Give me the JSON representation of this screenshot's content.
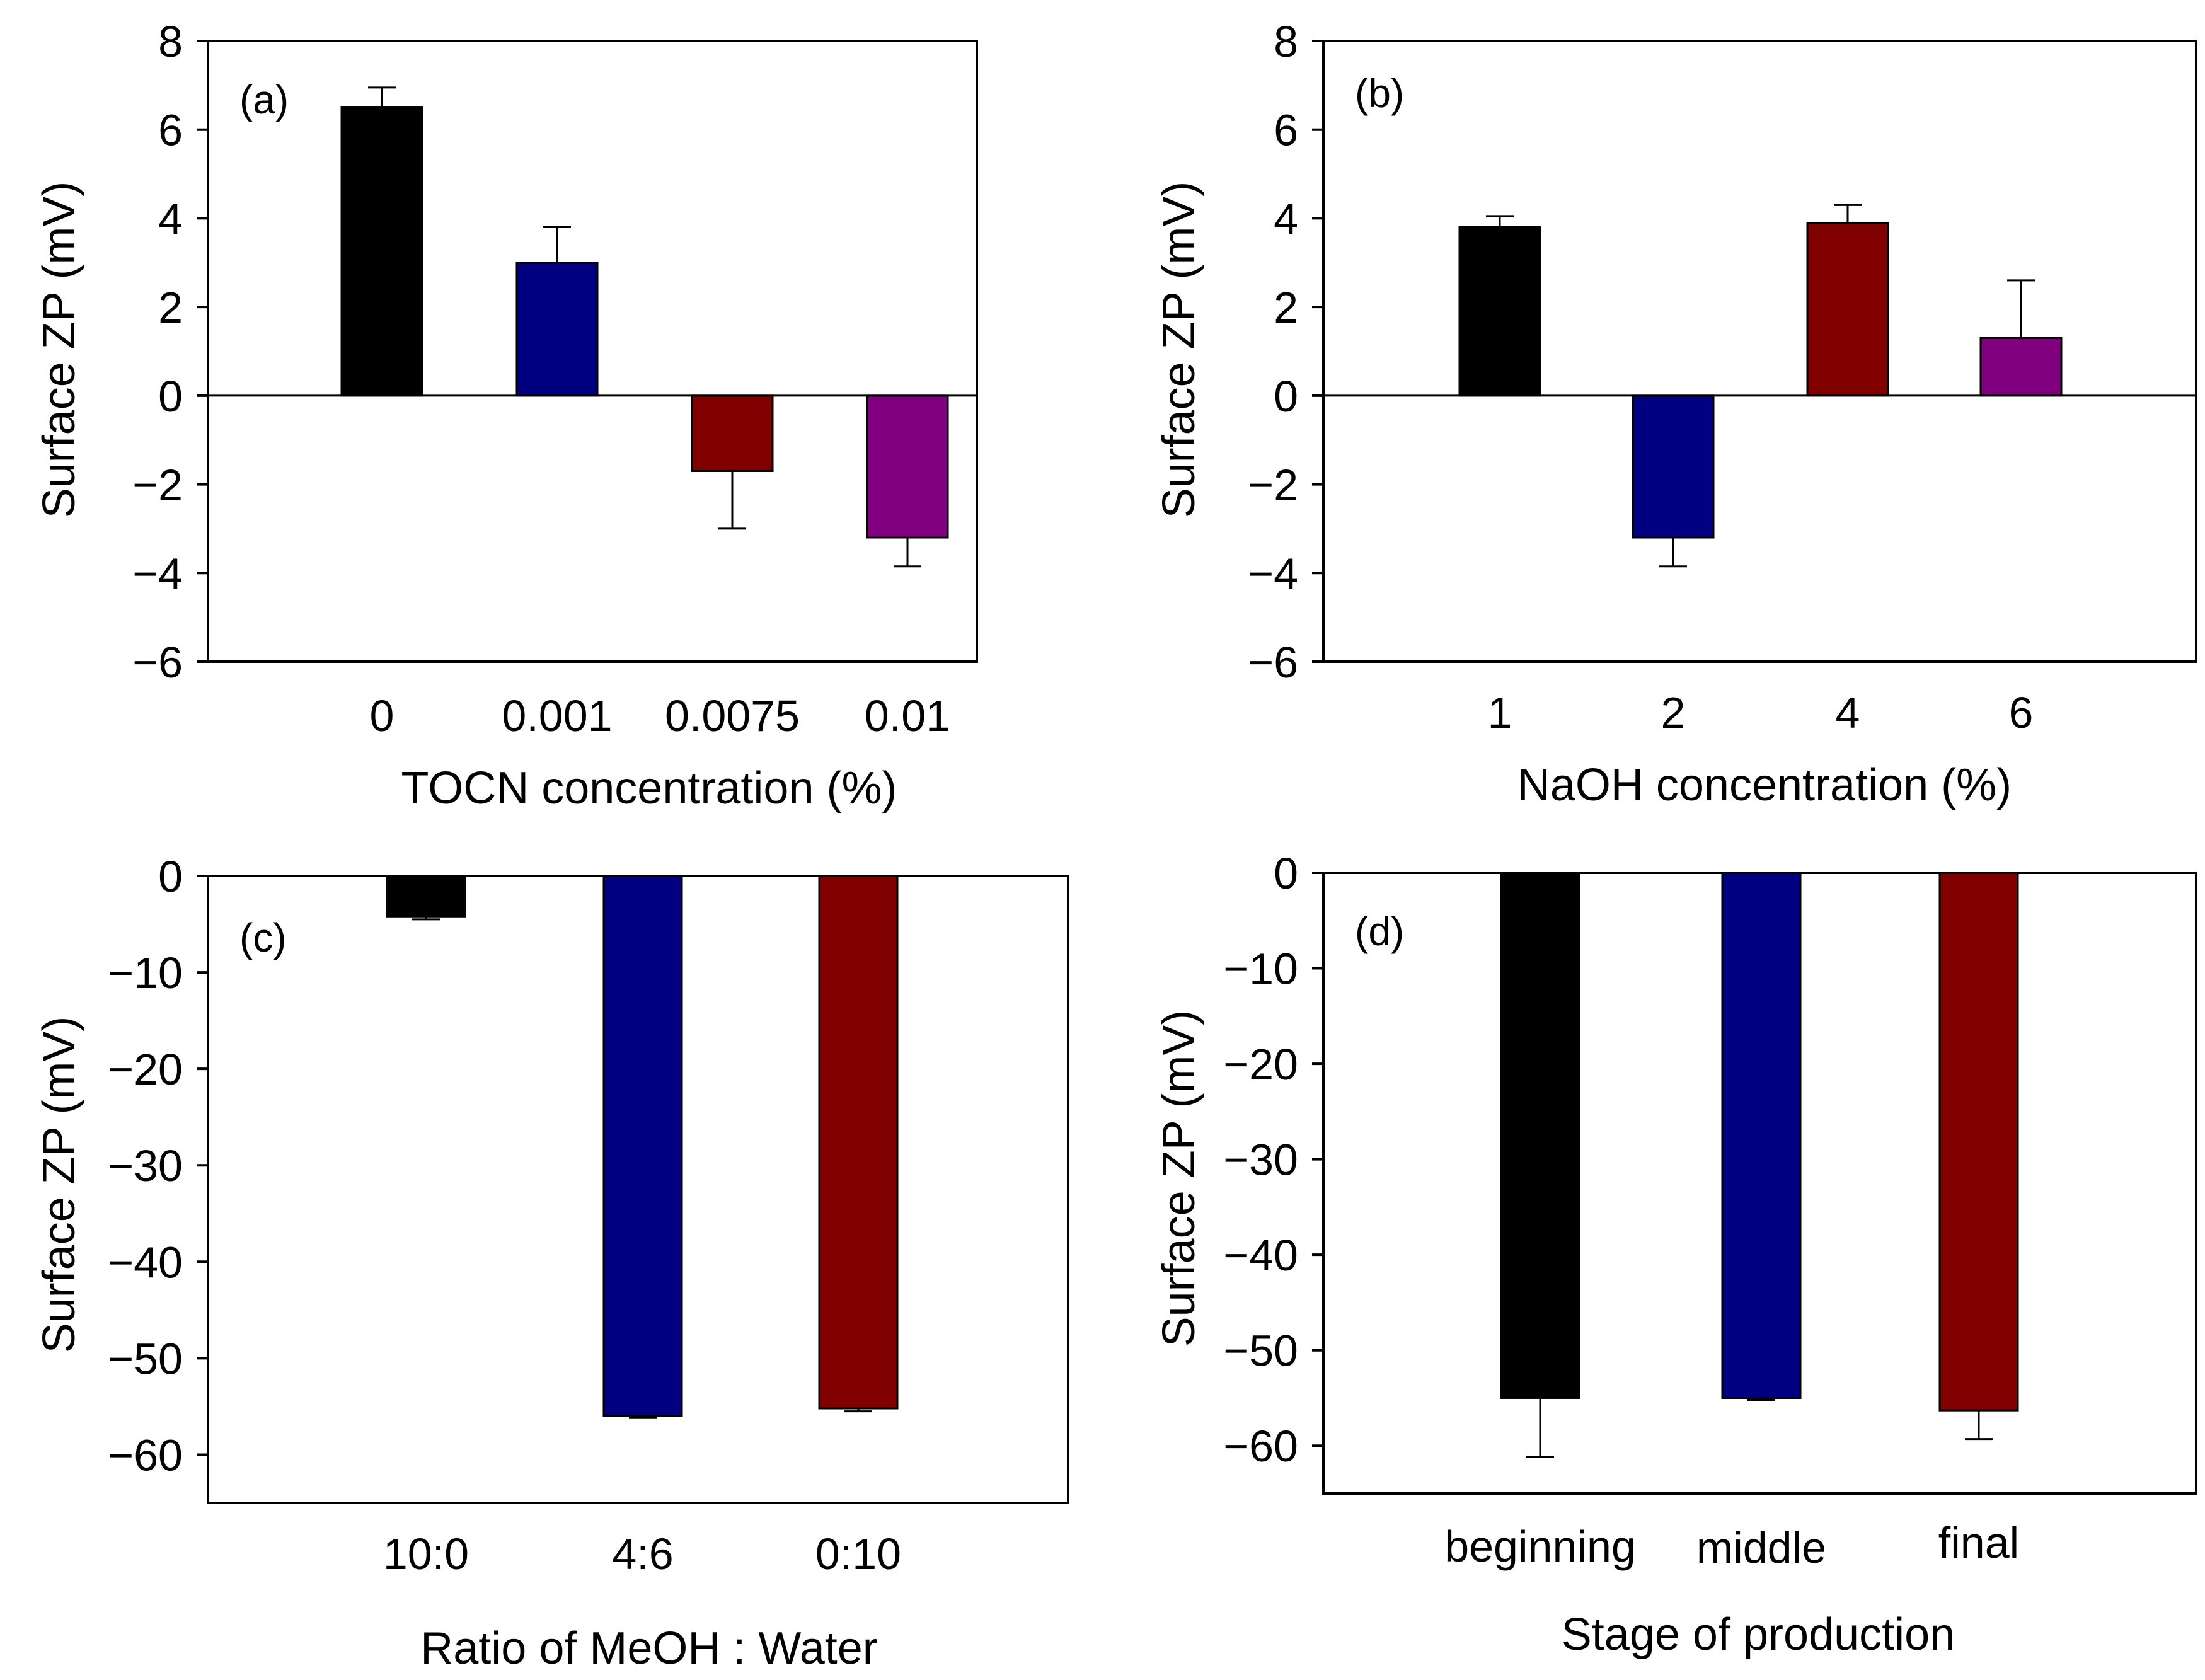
{
  "chart_data": [
    {
      "type": "bar",
      "panel_label": "(a)",
      "title": "",
      "xlabel": "TOCN concentration (%)",
      "ylabel": "Surface ZP (mV)",
      "categories": [
        "0",
        "0.001",
        "0.0075",
        "0.01"
      ],
      "values": [
        6.5,
        3.0,
        -1.7,
        -3.2
      ],
      "errors": [
        0.45,
        0.8,
        1.3,
        0.65
      ],
      "colors": [
        "#000000",
        "#000080",
        "#800000",
        "#800080"
      ],
      "ylim": [
        -6,
        8
      ],
      "yticks": [
        8,
        6,
        4,
        2,
        0,
        -2,
        -4,
        -6
      ],
      "ytick_labels": [
        "8",
        "6",
        "4",
        "2",
        "0",
        "−2",
        "−4",
        "−6"
      ],
      "zero_line": true,
      "grid": false
    },
    {
      "type": "bar",
      "panel_label": "(b)",
      "title": "",
      "xlabel": "NaOH concentration (%)",
      "ylabel": "Surface ZP (mV)",
      "categories": [
        "1",
        "2",
        "4",
        "6"
      ],
      "values": [
        3.8,
        -3.2,
        3.9,
        1.3
      ],
      "errors": [
        0.25,
        0.65,
        0.4,
        1.3
      ],
      "colors": [
        "#000000",
        "#000080",
        "#800000",
        "#800080"
      ],
      "ylim": [
        -6,
        8
      ],
      "yticks": [
        8,
        6,
        4,
        2,
        0,
        -2,
        -4,
        -6
      ],
      "ytick_labels": [
        "8",
        "6",
        "4",
        "2",
        "0",
        "−2",
        "−4",
        "−6"
      ],
      "zero_line": true,
      "grid": false
    },
    {
      "type": "bar",
      "panel_label": "(c)",
      "title": "",
      "xlabel": "Ratio of MeOH : Water",
      "ylabel": "Surface ZP (mV)",
      "categories": [
        "10:0",
        "4:6",
        "0:10"
      ],
      "values": [
        -4.2,
        -56.0,
        -55.2
      ],
      "errors": [
        0.3,
        0.2,
        0.3
      ],
      "colors": [
        "#000000",
        "#000080",
        "#800000"
      ],
      "ylim": [
        -65,
        0
      ],
      "yticks": [
        0,
        -10,
        -20,
        -30,
        -40,
        -50,
        -60
      ],
      "ytick_labels": [
        "0",
        "−10",
        "−20",
        "−30",
        "−40",
        "−50",
        "−60"
      ],
      "zero_line": false,
      "grid": false
    },
    {
      "type": "bar",
      "panel_label": "(d)",
      "title": "",
      "xlabel": "Stage of production",
      "ylabel": "Surface ZP (mV)",
      "categories": [
        "beginning",
        "middle",
        "final"
      ],
      "values": [
        -55.0,
        -55.0,
        -56.3
      ],
      "errors": [
        6.2,
        0.2,
        3.0
      ],
      "colors": [
        "#000000",
        "#000080",
        "#800000"
      ],
      "ylim": [
        -65,
        0
      ],
      "yticks": [
        0,
        -10,
        -20,
        -30,
        -40,
        -50,
        -60
      ],
      "ytick_labels": [
        "0",
        "−10",
        "−20",
        "−30",
        "−40",
        "−50",
        "−60"
      ],
      "zero_line": false,
      "grid": false
    }
  ]
}
